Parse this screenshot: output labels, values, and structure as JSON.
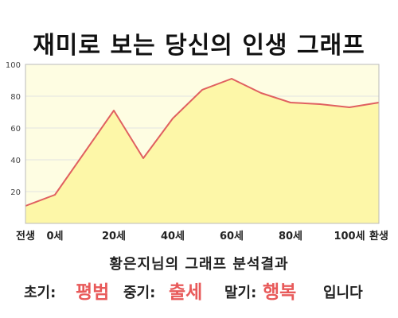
{
  "title": "재미로 보는 당신의 인생 그래프",
  "subtitle": "황은지님의 그래프 분석결과",
  "result": {
    "early_label": "초기:",
    "early_value": "평범",
    "middle_label": "중기:",
    "middle_value": "출세",
    "late_label": "말기:",
    "late_value": "행복",
    "ending": "입니다"
  },
  "colors": {
    "line": "#e06060",
    "area": "#fdf7a8",
    "plot_bg": "#fefde2",
    "highlight": "#e85a5a"
  },
  "chart_data": {
    "type": "area",
    "xlabel": "",
    "ylabel": "",
    "ylim": [
      0,
      100
    ],
    "xlim": [
      -10,
      110
    ],
    "y_ticks": [
      20,
      40,
      60,
      80,
      100
    ],
    "x_ticks": [
      {
        "value": -10,
        "label": "전생"
      },
      {
        "value": 0,
        "label": "0세"
      },
      {
        "value": 20,
        "label": "20세"
      },
      {
        "value": 40,
        "label": "40세"
      },
      {
        "value": 60,
        "label": "60세"
      },
      {
        "value": 80,
        "label": "80세"
      },
      {
        "value": 100,
        "label": "100세"
      },
      {
        "value": 110,
        "label": "환생"
      }
    ],
    "grid": true,
    "series": [
      {
        "x": [
          -10,
          0,
          20,
          30,
          40,
          50,
          60,
          70,
          80,
          90,
          100,
          110
        ],
        "values": [
          11,
          18,
          71,
          41,
          66,
          84,
          91,
          82,
          76,
          75,
          73,
          76
        ]
      }
    ]
  }
}
